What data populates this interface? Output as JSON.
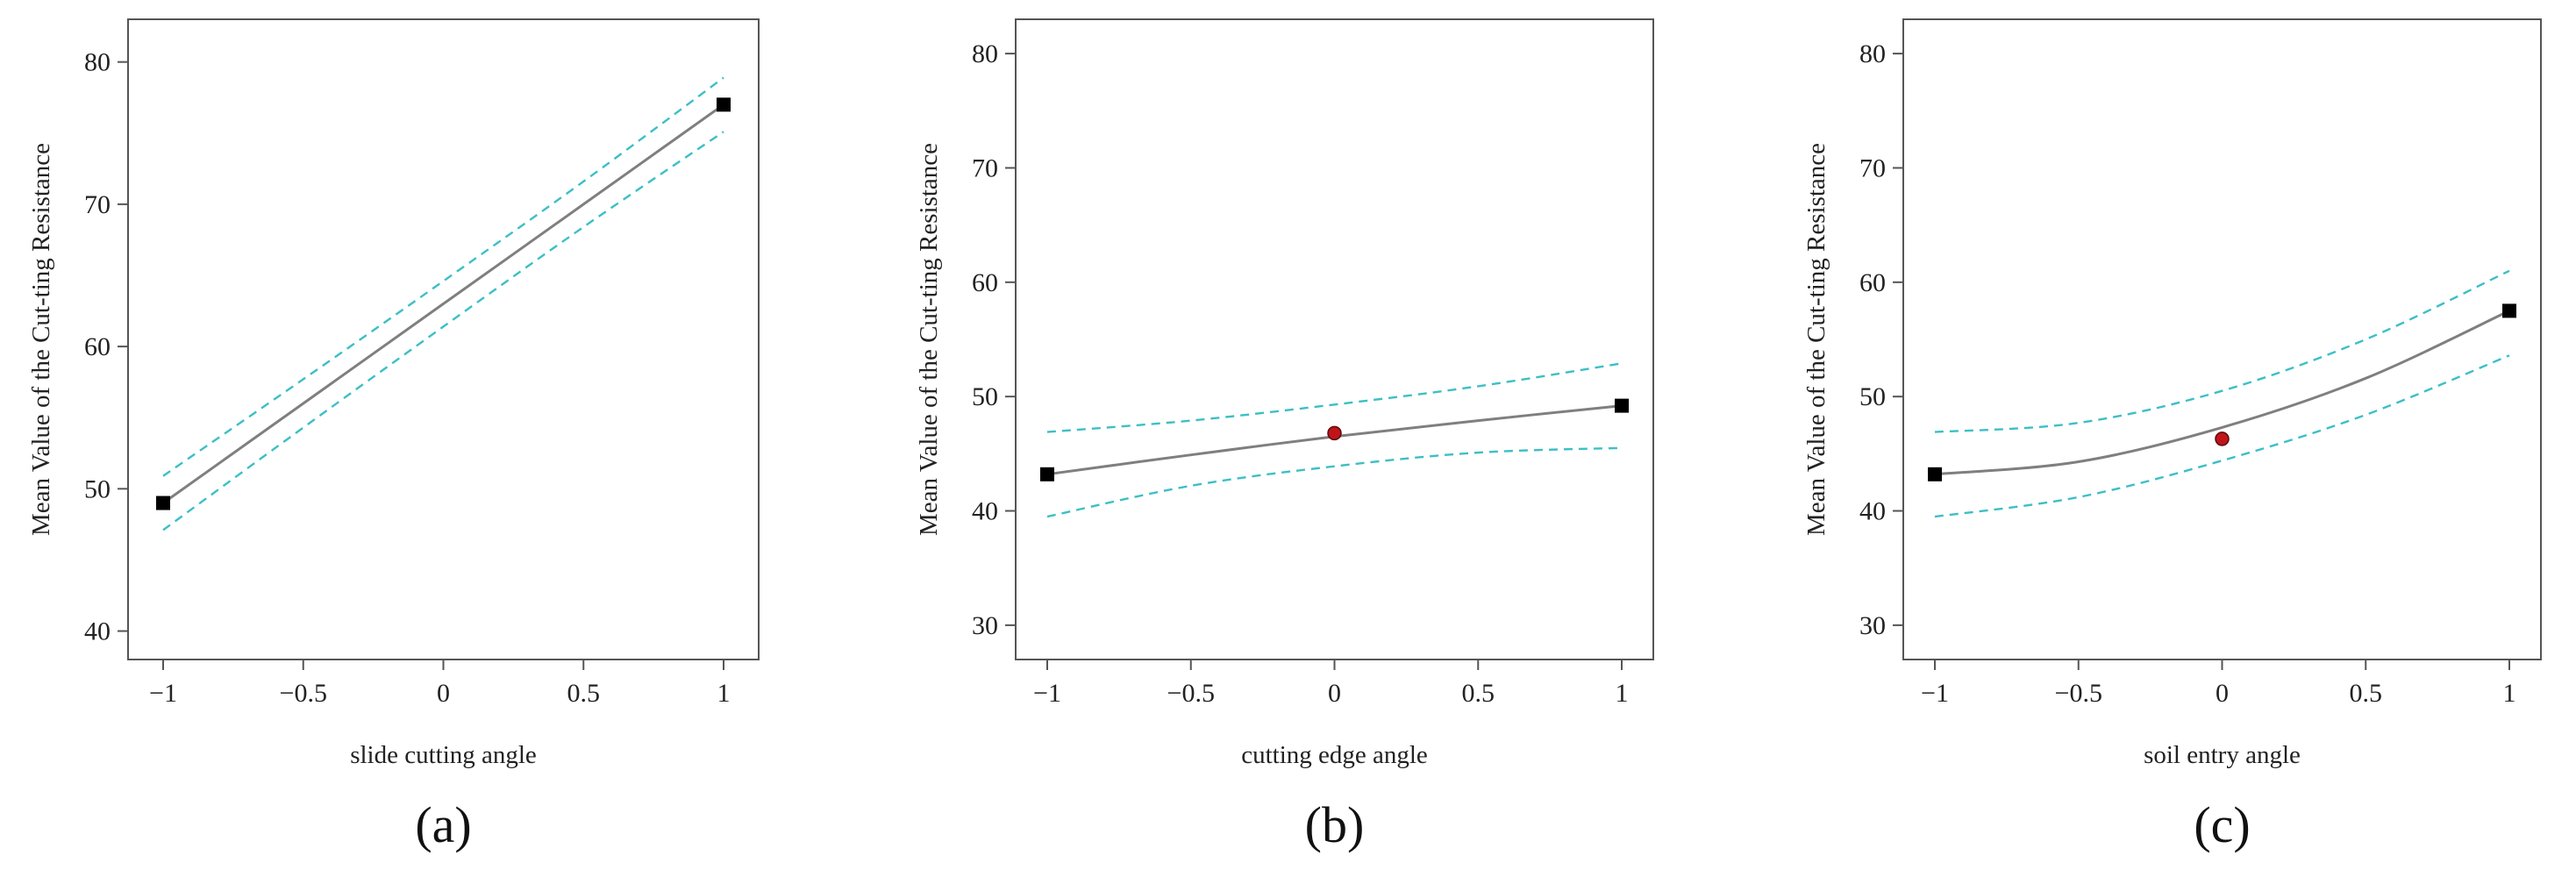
{
  "colors": {
    "mean_line": "#7f7f7f",
    "ci_line": "#3cbfc6",
    "end_marker": "#000000",
    "center_marker": "#c0141a",
    "center_marker_stroke": "#5a0a0a"
  },
  "chart_data": [
    {
      "type": "line",
      "panel_label": "(a)",
      "xlabel": "slide cutting angle",
      "ylabel": "Mean Value of the Cut-ting Resistance",
      "xlim": [
        -1,
        1
      ],
      "ylim": [
        38,
        83
      ],
      "x_ticks": [
        -1,
        -0.5,
        0,
        0.5,
        1
      ],
      "x_tick_labels": [
        "−1",
        "−0.5",
        "0",
        "0.5",
        "1"
      ],
      "y_ticks": [
        40,
        50,
        60,
        70,
        80
      ],
      "y_tick_labels": [
        "40",
        "50",
        "60",
        "70",
        "80"
      ],
      "series": [
        {
          "name": "mean",
          "x": [
            -1,
            -0.5,
            0,
            0.5,
            1
          ],
          "values": [
            49.0,
            56.0,
            63.0,
            70.0,
            77.0
          ]
        },
        {
          "name": "upper",
          "x": [
            -1,
            -0.5,
            0,
            0.5,
            1
          ],
          "values": [
            50.9,
            57.7,
            64.6,
            71.6,
            78.9
          ]
        },
        {
          "name": "lower",
          "x": [
            -1,
            -0.5,
            0,
            0.5,
            1
          ],
          "values": [
            47.1,
            54.3,
            61.4,
            68.4,
            75.1
          ]
        }
      ],
      "end_points": [
        {
          "x": -1,
          "y": 49.0
        },
        {
          "x": 1,
          "y": 77.0
        }
      ],
      "center_point": null
    },
    {
      "type": "line",
      "panel_label": "(b)",
      "xlabel": "cutting edge angle",
      "ylabel": "Mean Value of the Cut-ting Resistance",
      "xlim": [
        -1,
        1
      ],
      "ylim": [
        27,
        83
      ],
      "x_ticks": [
        -1,
        -0.5,
        0,
        0.5,
        1
      ],
      "x_tick_labels": [
        "−1",
        "−0.5",
        "0",
        "0.5",
        "1"
      ],
      "y_ticks": [
        30,
        40,
        50,
        60,
        70,
        80
      ],
      "y_tick_labels": [
        "30",
        "40",
        "50",
        "60",
        "70",
        "80"
      ],
      "series": [
        {
          "name": "mean",
          "x": [
            -1,
            -0.5,
            0,
            0.5,
            1
          ],
          "values": [
            43.2,
            44.9,
            46.5,
            47.9,
            49.2
          ]
        },
        {
          "name": "upper",
          "x": [
            -1,
            -0.5,
            0,
            0.5,
            1
          ],
          "values": [
            46.9,
            47.9,
            49.3,
            50.9,
            52.9
          ]
        },
        {
          "name": "lower",
          "x": [
            -1,
            -0.5,
            0,
            0.5,
            1
          ],
          "values": [
            39.5,
            42.2,
            43.9,
            45.1,
            45.5
          ]
        }
      ],
      "end_points": [
        {
          "x": -1,
          "y": 43.2
        },
        {
          "x": 1,
          "y": 49.2
        }
      ],
      "center_point": {
        "x": 0,
        "y": 46.8
      }
    },
    {
      "type": "line",
      "panel_label": "(c)",
      "xlabel": "soil entry angle",
      "ylabel": "Mean Value of the Cut-ting Resistance",
      "xlim": [
        -1,
        1
      ],
      "ylim": [
        27,
        83
      ],
      "x_ticks": [
        -1,
        -0.5,
        0,
        0.5,
        1
      ],
      "x_tick_labels": [
        "−1",
        "−0.5",
        "0",
        "0.5",
        "1"
      ],
      "y_ticks": [
        30,
        40,
        50,
        60,
        70,
        80
      ],
      "y_tick_labels": [
        "30",
        "40",
        "50",
        "60",
        "70",
        "80"
      ],
      "series": [
        {
          "name": "mean",
          "x": [
            -1,
            -0.5,
            0,
            0.5,
            1
          ],
          "values": [
            43.2,
            44.3,
            47.3,
            51.6,
            57.5
          ]
        },
        {
          "name": "upper",
          "x": [
            -1,
            -0.5,
            0,
            0.5,
            1
          ],
          "values": [
            46.9,
            47.7,
            50.5,
            55.0,
            61.0
          ]
        },
        {
          "name": "lower",
          "x": [
            -1,
            -0.5,
            0,
            0.5,
            1
          ],
          "values": [
            39.5,
            41.2,
            44.4,
            48.4,
            53.6
          ]
        }
      ],
      "end_points": [
        {
          "x": -1,
          "y": 43.2
        },
        {
          "x": 1,
          "y": 57.5
        }
      ],
      "center_point": {
        "x": 0,
        "y": 46.3
      }
    }
  ]
}
